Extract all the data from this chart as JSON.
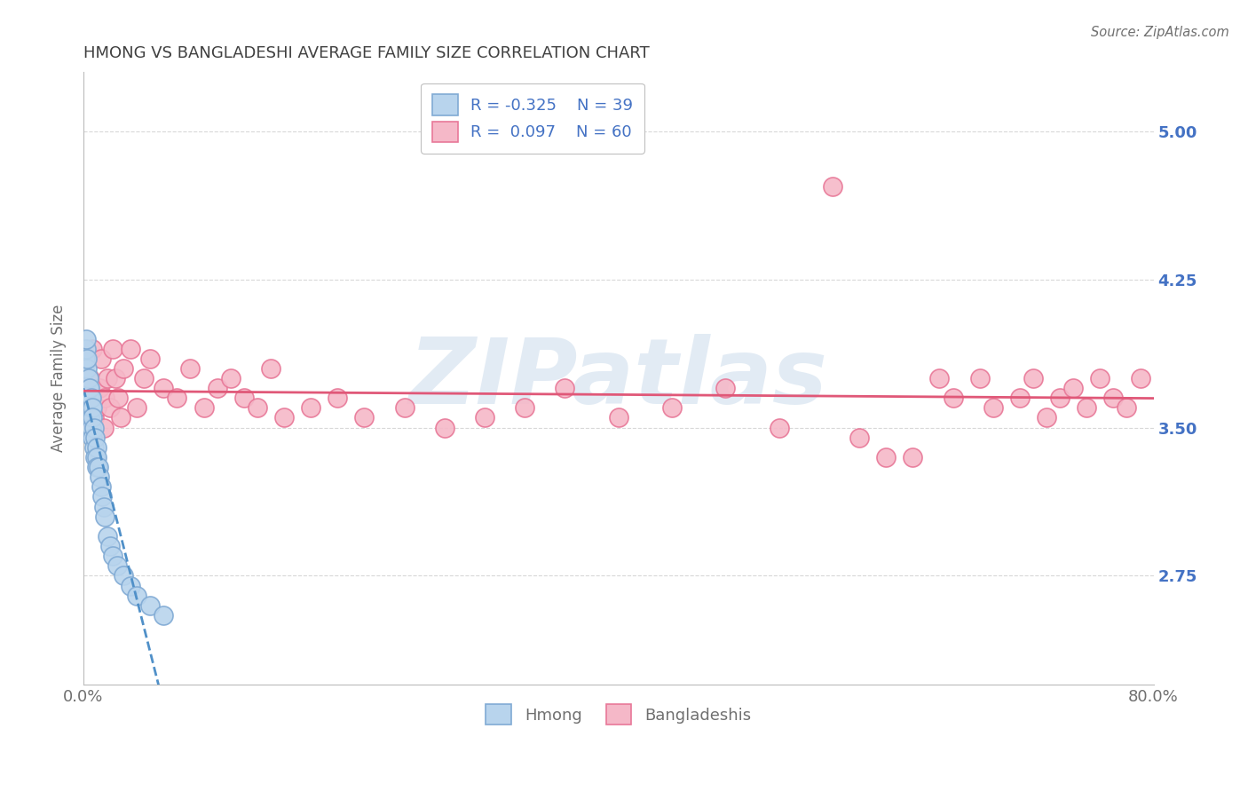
{
  "title": "HMONG VS BANGLADESHI AVERAGE FAMILY SIZE CORRELATION CHART",
  "source": "Source: ZipAtlas.com",
  "ylabel": "Average Family Size",
  "yticks_right": [
    2.75,
    3.5,
    4.25,
    5.0
  ],
  "xlim": [
    0.0,
    80.0
  ],
  "ylim": [
    2.2,
    5.3
  ],
  "legend_r1": "R = -0.325",
  "legend_n1": "N = 39",
  "legend_r2": "R =  0.097",
  "legend_n2": "N = 60",
  "hmong_color": "#b8d4ed",
  "bangla_color": "#f5b8c8",
  "hmong_edge": "#80aad4",
  "bangla_edge": "#e87898",
  "trend_hmong_color": "#5090c8",
  "trend_bangla_color": "#e05878",
  "background_color": "#ffffff",
  "grid_color": "#d8d8d8",
  "title_color": "#404040",
  "watermark_color": "#c0d4e8",
  "watermark_text": "ZIPatlas",
  "label_color_blue": "#4472c4",
  "label_color_gray": "#707070",
  "hmong_x": [
    0.1,
    0.15,
    0.2,
    0.2,
    0.3,
    0.3,
    0.4,
    0.4,
    0.5,
    0.5,
    0.5,
    0.6,
    0.6,
    0.6,
    0.7,
    0.7,
    0.7,
    0.8,
    0.8,
    0.9,
    0.9,
    1.0,
    1.0,
    1.0,
    1.1,
    1.2,
    1.3,
    1.4,
    1.5,
    1.6,
    1.8,
    2.0,
    2.2,
    2.5,
    3.0,
    3.5,
    4.0,
    5.0,
    6.0
  ],
  "hmong_y": [
    3.8,
    3.85,
    3.9,
    3.95,
    3.8,
    3.85,
    3.7,
    3.75,
    3.65,
    3.7,
    3.55,
    3.6,
    3.65,
    3.5,
    3.6,
    3.55,
    3.45,
    3.5,
    3.4,
    3.45,
    3.35,
    3.4,
    3.35,
    3.3,
    3.3,
    3.25,
    3.2,
    3.15,
    3.1,
    3.05,
    2.95,
    2.9,
    2.85,
    2.8,
    2.75,
    2.7,
    2.65,
    2.6,
    2.55
  ],
  "bangla_x": [
    0.3,
    0.5,
    0.7,
    0.8,
    1.0,
    1.2,
    1.3,
    1.5,
    1.6,
    1.8,
    2.0,
    2.2,
    2.4,
    2.6,
    2.8,
    3.0,
    3.5,
    4.0,
    4.5,
    5.0,
    6.0,
    7.0,
    8.0,
    9.0,
    10.0,
    11.0,
    12.0,
    13.0,
    14.0,
    15.0,
    17.0,
    19.0,
    21.0,
    24.0,
    27.0,
    30.0,
    33.0,
    36.0,
    40.0,
    44.0,
    48.0,
    52.0,
    56.0,
    58.0,
    60.0,
    62.0,
    64.0,
    65.0,
    67.0,
    68.0,
    70.0,
    71.0,
    72.0,
    73.0,
    74.0,
    75.0,
    76.0,
    77.0,
    78.0,
    79.0
  ],
  "bangla_y": [
    3.55,
    3.75,
    3.9,
    3.55,
    3.6,
    3.7,
    3.85,
    3.5,
    3.65,
    3.75,
    3.6,
    3.9,
    3.75,
    3.65,
    3.55,
    3.8,
    3.9,
    3.6,
    3.75,
    3.85,
    3.7,
    3.65,
    3.8,
    3.6,
    3.7,
    3.75,
    3.65,
    3.6,
    3.8,
    3.55,
    3.6,
    3.65,
    3.55,
    3.6,
    3.5,
    3.55,
    3.6,
    3.7,
    3.55,
    3.6,
    3.7,
    3.5,
    4.72,
    3.45,
    3.35,
    3.35,
    3.75,
    3.65,
    3.75,
    3.6,
    3.65,
    3.75,
    3.55,
    3.65,
    3.7,
    3.6,
    3.75,
    3.65,
    3.6,
    3.75
  ]
}
